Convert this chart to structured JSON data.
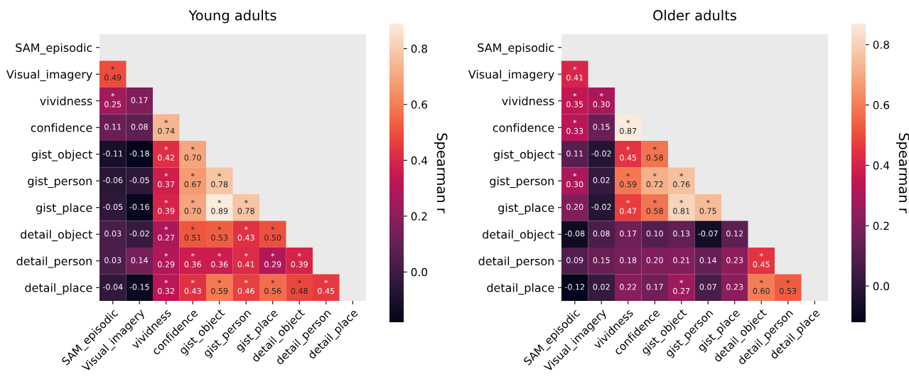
{
  "chart_data": [
    {
      "type": "heatmap",
      "title": "Young adults",
      "clabel": "Spearman r",
      "categories": [
        "SAM_episodic",
        "Visual_imagery",
        "vividness",
        "confidence",
        "gist_object",
        "gist_person",
        "gist_place",
        "detail_object",
        "detail_person",
        "detail_place"
      ],
      "y_categories": [
        "SAM_episodic",
        "Visual_imagery",
        "vividness",
        "confidence",
        "gist_object",
        "gist_person",
        "gist_place",
        "detail_object",
        "detail_person",
        "detail_place"
      ],
      "cells": [
        [
          null,
          null,
          null,
          null,
          null,
          null,
          null,
          null,
          null,
          null
        ],
        [
          0.49,
          null,
          null,
          null,
          null,
          null,
          null,
          null,
          null,
          null
        ],
        [
          0.25,
          0.17,
          null,
          null,
          null,
          null,
          null,
          null,
          null,
          null
        ],
        [
          0.11,
          0.08,
          0.74,
          null,
          null,
          null,
          null,
          null,
          null,
          null
        ],
        [
          -0.11,
          -0.18,
          0.42,
          0.7,
          null,
          null,
          null,
          null,
          null,
          null
        ],
        [
          -0.06,
          -0.05,
          0.37,
          0.67,
          0.78,
          null,
          null,
          null,
          null,
          null
        ],
        [
          -0.05,
          -0.16,
          0.39,
          0.7,
          0.89,
          0.78,
          null,
          null,
          null,
          null
        ],
        [
          0.03,
          -0.02,
          0.27,
          0.51,
          0.53,
          0.43,
          0.5,
          null,
          null,
          null
        ],
        [
          0.03,
          0.14,
          0.29,
          0.36,
          0.36,
          0.41,
          0.29,
          0.39,
          null,
          null
        ],
        [
          -0.04,
          -0.15,
          0.32,
          0.43,
          0.59,
          0.46,
          0.56,
          0.48,
          0.45,
          null
        ]
      ],
      "cell_labels": [
        [
          null,
          null,
          null,
          null,
          null,
          null,
          null,
          null,
          null,
          null
        ],
        [
          "*\n0.49",
          null,
          null,
          null,
          null,
          null,
          null,
          null,
          null,
          null
        ],
        [
          "*\n0.25",
          "0.17",
          null,
          null,
          null,
          null,
          null,
          null,
          null,
          null
        ],
        [
          "0.11",
          "0.08",
          "*\n0.74",
          null,
          null,
          null,
          null,
          null,
          null,
          null
        ],
        [
          "-0.11",
          "-0.18",
          "*\n0.42",
          "*\n0.70",
          null,
          null,
          null,
          null,
          null,
          null
        ],
        [
          "-0.06",
          "-0.05",
          "*\n0.37",
          "*\n0.67",
          "*\n0.78",
          null,
          null,
          null,
          null,
          null
        ],
        [
          "-0.05",
          "-0.16",
          "*\n0.39",
          "*\n0.70",
          "*\n0.89",
          "*\n0.78",
          null,
          null,
          null,
          null
        ],
        [
          "0.03",
          "-0.02",
          "*\n0.27",
          "*\n0.51",
          "*\n0.53",
          "*\n0.43",
          "*\n0.50",
          null,
          null,
          null
        ],
        [
          "0.03",
          "0.14",
          "*\n0.29",
          "*\n0.36",
          "*\n0.36",
          "*\n0.41",
          "*\n0.29",
          "*\n0.39",
          null,
          null
        ],
        [
          "-0.04",
          "-0.15",
          "*\n0.32",
          "*\n0.43",
          "*\n0.59",
          "*\n0.46",
          "*\n0.56",
          "*\n0.48",
          "*\n0.45",
          null
        ]
      ],
      "clim": [
        -0.18,
        0.89
      ],
      "cticks": [
        {
          "value": 0.0,
          "label": "0.0"
        },
        {
          "value": 0.2,
          "label": "0.2"
        },
        {
          "value": 0.4,
          "label": "0.4"
        },
        {
          "value": 0.6,
          "label": "0.6"
        },
        {
          "value": 0.8,
          "label": "0.8"
        }
      ]
    },
    {
      "type": "heatmap",
      "title": "Older adults",
      "clabel": "Spearman r",
      "categories": [
        "SAM_episodic",
        "Visual_imagery",
        "vividness",
        "confidence",
        "gist_object",
        "gist_person",
        "gist_place",
        "detail_object",
        "detail_person",
        "detail_place"
      ],
      "y_categories": [
        "SAM_episodic",
        "Visual_imagery",
        "vividness",
        "confidence",
        "gist_object",
        "gist_person",
        "gist_place",
        "detail_object",
        "detail_person",
        "detail_place"
      ],
      "cells": [
        [
          null,
          null,
          null,
          null,
          null,
          null,
          null,
          null,
          null,
          null
        ],
        [
          0.41,
          null,
          null,
          null,
          null,
          null,
          null,
          null,
          null,
          null
        ],
        [
          0.35,
          0.3,
          null,
          null,
          null,
          null,
          null,
          null,
          null,
          null
        ],
        [
          0.33,
          0.15,
          0.87,
          null,
          null,
          null,
          null,
          null,
          null,
          null
        ],
        [
          0.11,
          -0.02,
          0.45,
          0.58,
          null,
          null,
          null,
          null,
          null,
          null
        ],
        [
          0.3,
          0.02,
          0.59,
          0.72,
          0.76,
          null,
          null,
          null,
          null,
          null
        ],
        [
          0.2,
          -0.02,
          0.47,
          0.58,
          0.81,
          0.75,
          null,
          null,
          null,
          null
        ],
        [
          -0.08,
          0.08,
          0.17,
          0.1,
          0.13,
          -0.07,
          0.12,
          null,
          null,
          null
        ],
        [
          0.09,
          0.15,
          0.18,
          0.2,
          0.21,
          0.14,
          0.23,
          0.45,
          null,
          null
        ],
        [
          -0.12,
          0.02,
          0.22,
          0.17,
          0.27,
          0.07,
          0.23,
          0.6,
          0.53,
          null
        ]
      ],
      "cell_labels": [
        [
          null,
          null,
          null,
          null,
          null,
          null,
          null,
          null,
          null,
          null
        ],
        [
          "*\n0.41",
          null,
          null,
          null,
          null,
          null,
          null,
          null,
          null,
          null
        ],
        [
          "*\n0.35",
          "*\n0.30",
          null,
          null,
          null,
          null,
          null,
          null,
          null,
          null
        ],
        [
          "*\n0.33",
          "0.15",
          "*\n0.87",
          null,
          null,
          null,
          null,
          null,
          null,
          null
        ],
        [
          "0.11",
          "-0.02",
          "*\n0.45",
          "*\n0.58",
          null,
          null,
          null,
          null,
          null,
          null
        ],
        [
          "*\n0.30",
          "0.02",
          "*\n0.59",
          "*\n0.72",
          "*\n0.76",
          null,
          null,
          null,
          null,
          null
        ],
        [
          "0.20",
          "-0.02",
          "*\n0.47",
          "*\n0.58",
          "*\n0.81",
          "*\n0.75",
          null,
          null,
          null,
          null
        ],
        [
          "-0.08",
          "0.08",
          "0.17",
          "0.10",
          "0.13",
          "-0.07",
          "0.12",
          null,
          null,
          null
        ],
        [
          "0.09",
          "0.15",
          "0.18",
          "0.20",
          "0.21",
          "0.14",
          "0.23",
          "*\n0.45",
          null,
          null
        ],
        [
          "-0.12",
          "0.02",
          "0.22",
          "0.17",
          "*\n0.27",
          "0.07",
          "0.23",
          "*\n0.60",
          "*\n0.53",
          null
        ]
      ],
      "clim": [
        -0.12,
        0.87
      ],
      "cticks": [
        {
          "value": 0.0,
          "label": "0.0"
        },
        {
          "value": 0.2,
          "label": "0.2"
        },
        {
          "value": 0.4,
          "label": "0.4"
        },
        {
          "value": 0.6,
          "label": "0.6"
        },
        {
          "value": 0.8,
          "label": "0.8"
        }
      ]
    }
  ]
}
